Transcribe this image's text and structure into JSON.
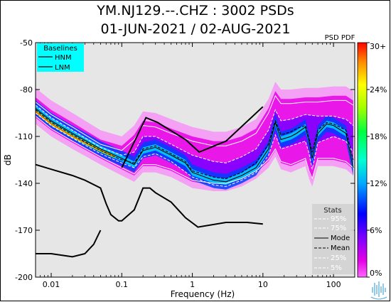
{
  "chart_data": {
    "type": "line",
    "title": "YM.NJ129.--.CHZ : 3002 PSDs",
    "subtitle": "01-JUN-2021 / 02-AUG-2021",
    "xlabel": "Frequency (Hz)",
    "ylabel": "dB",
    "xscale": "log",
    "xlim": [
      0.006,
      200
    ],
    "ylim": [
      -200,
      -50
    ],
    "x_ticks": [
      {
        "v": 0.01,
        "label": "0.01"
      },
      {
        "v": 0.1,
        "label": "0.1"
      },
      {
        "v": 1,
        "label": "1"
      },
      {
        "v": 10,
        "label": "10"
      },
      {
        "v": 100,
        "label": "100"
      }
    ],
    "y_ticks": [
      {
        "v": -50,
        "label": "-50"
      },
      {
        "v": -80,
        "label": "-80"
      },
      {
        "v": -110,
        "label": "-110"
      },
      {
        "v": -140,
        "label": "-140"
      },
      {
        "v": -170,
        "label": "-170"
      },
      {
        "v": -200,
        "label": "-200"
      }
    ],
    "colorbar": {
      "title": "PSD PDF",
      "ticks": [
        {
          "v": 30,
          "label": "30+"
        },
        {
          "v": 24,
          "label": "24%"
        },
        {
          "v": 18,
          "label": "18%"
        },
        {
          "v": 12,
          "label": "12%"
        },
        {
          "v": 6,
          "label": "6%"
        },
        {
          "v": 0,
          "label": "0%"
        }
      ]
    },
    "baselines_legend": {
      "title": "Baselines",
      "items": [
        "HNM",
        "LNM"
      ],
      "position": "top-left",
      "color": "#00ffff"
    },
    "stats_legend": {
      "title": "Stats",
      "items": [
        "95%",
        "75%",
        "Mode",
        "Mean",
        "25%",
        "5%"
      ],
      "position": "bottom-right"
    },
    "series": [
      {
        "name": "HNM",
        "x": [
          0.1,
          0.22,
          0.32,
          0.8,
          1.0,
          1.25,
          3.0,
          10.0
        ],
        "y": [
          -130,
          -98,
          -101,
          -112,
          -116,
          -120,
          -113,
          -91
        ]
      },
      {
        "name": "LNM",
        "x": [
          0.006,
          0.01,
          0.02,
          0.03,
          0.05,
          0.06,
          0.07,
          0.09,
          0.1,
          0.15,
          0.2,
          0.25,
          0.3,
          0.5,
          0.8,
          1.2,
          3.0,
          6.0,
          10.0
        ],
        "y": [
          -128,
          -131,
          -135,
          -138,
          -143,
          -153,
          -160,
          -164,
          -164,
          -157,
          -143,
          -143,
          -146,
          -152,
          -162,
          -168,
          -165,
          -165,
          -166
        ]
      },
      {
        "name": "LNM",
        "x": [
          0.006,
          0.01,
          0.02,
          0.03,
          0.04,
          0.05
        ],
        "y": [
          -185,
          -185,
          -187,
          -185,
          -179,
          -170
        ]
      },
      {
        "name": "Mode",
        "x": [
          0.006,
          0.01,
          0.02,
          0.05,
          0.1,
          0.15,
          0.2,
          0.3,
          0.5,
          0.8,
          1.0,
          2.0,
          3.0,
          5.0,
          8.0,
          12,
          15,
          18,
          25,
          30,
          40,
          45,
          50,
          60,
          80,
          100,
          150,
          190
        ],
        "y": [
          -92,
          -100,
          -108,
          -118,
          -124,
          -128,
          -119,
          -117,
          -122,
          -127,
          -133,
          -138,
          -139,
          -135,
          -130,
          -118,
          -101,
          -112,
          -110,
          -108,
          -104,
          -113,
          -124,
          -108,
          -102,
          -103,
          -108,
          -130
        ]
      },
      {
        "name": "Mean",
        "x": [
          0.006,
          0.01,
          0.02,
          0.05,
          0.1,
          0.15,
          0.2,
          0.3,
          0.5,
          0.8,
          1.0,
          2.0,
          3.0,
          5.0,
          8.0,
          12,
          15,
          18,
          25,
          30,
          40,
          45,
          50,
          60,
          80,
          100,
          150,
          190
        ],
        "y": [
          -93,
          -101,
          -109,
          -119,
          -125,
          -127,
          -118,
          -116,
          -121,
          -126,
          -132,
          -136,
          -137,
          -133,
          -127,
          -115,
          -100,
          -109,
          -107,
          -105,
          -103,
          -112,
          -120,
          -106,
          -101,
          -102,
          -106,
          -125
        ]
      },
      {
        "name": "95%",
        "x": [
          0.006,
          0.01,
          0.02,
          0.05,
          0.1,
          0.15,
          0.2,
          0.3,
          0.5,
          1.0,
          2.0,
          3.0,
          5.0,
          8.0,
          12,
          15,
          18,
          25,
          40,
          60,
          100,
          150,
          190
        ],
        "y": [
          -88,
          -96,
          -104,
          -115,
          -119,
          -112,
          -103,
          -104,
          -108,
          -113,
          -116,
          -116,
          -113,
          -108,
          -95,
          -84,
          -89,
          -89,
          -88,
          -88,
          -87,
          -87,
          -90
        ]
      },
      {
        "name": "75%",
        "x": [
          0.006,
          0.01,
          0.02,
          0.05,
          0.1,
          0.15,
          0.2,
          0.3,
          0.5,
          1.0,
          2.0,
          3.0,
          5.0,
          8.0,
          12,
          15,
          18,
          25,
          40,
          60,
          100,
          150,
          190
        ],
        "y": [
          -90,
          -98,
          -106,
          -117,
          -122,
          -120,
          -110,
          -110,
          -115,
          -122,
          -126,
          -127,
          -123,
          -118,
          -106,
          -93,
          -100,
          -99,
          -96,
          -97,
          -97,
          -99,
          -103
        ]
      },
      {
        "name": "25%",
        "x": [
          0.006,
          0.01,
          0.02,
          0.05,
          0.1,
          0.15,
          0.2,
          0.3,
          0.5,
          1.0,
          2.0,
          3.0,
          5.0,
          8.0,
          12,
          15,
          18,
          25,
          40,
          45,
          50,
          60,
          100,
          150,
          190
        ],
        "y": [
          -95,
          -103,
          -111,
          -121,
          -127,
          -130,
          -123,
          -121,
          -126,
          -136,
          -141,
          -142,
          -138,
          -133,
          -122,
          -109,
          -118,
          -116,
          -113,
          -121,
          -131,
          -114,
          -110,
          -113,
          -120
        ]
      },
      {
        "name": "5%",
        "x": [
          0.006,
          0.01,
          0.02,
          0.05,
          0.1,
          0.15,
          0.2,
          0.3,
          0.5,
          1.0,
          2.0,
          3.0,
          5.0,
          8.0,
          12,
          15,
          18,
          25,
          40,
          45,
          50,
          60,
          100,
          150,
          190
        ],
        "y": [
          -97,
          -105,
          -113,
          -123,
          -130,
          -134,
          -128,
          -128,
          -131,
          -138,
          -140,
          -140,
          -137,
          -132,
          -125,
          -118,
          -126,
          -128,
          -124,
          -132,
          -137,
          -124,
          -124,
          -126,
          -130
        ]
      }
    ]
  }
}
